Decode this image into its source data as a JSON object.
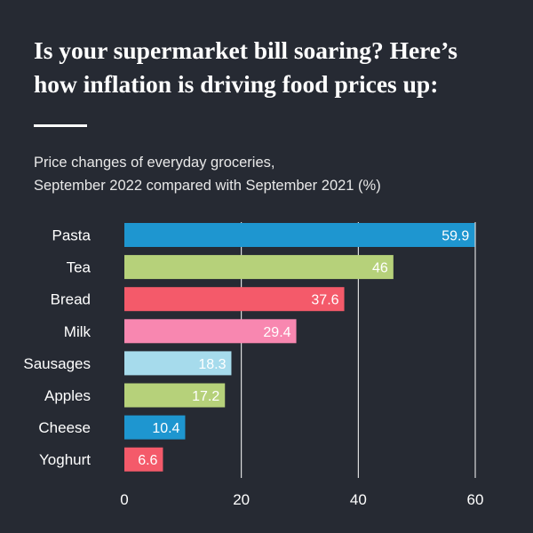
{
  "header": {
    "title_line1": "Is your supermarket bill soaring? Here’s",
    "title_line2": "how inflation is driving food prices up:",
    "subtitle_line1": "Price changes of everyday groceries,",
    "subtitle_line2": "September 2022 compared with September 2021 (%)"
  },
  "chart_data": {
    "type": "bar",
    "orientation": "horizontal",
    "title": "Is your supermarket bill soaring? Here’s how inflation is driving food prices up:",
    "subtitle": "Price changes of everyday groceries, September 2022 compared with September 2021 (%)",
    "categories": [
      "Pasta",
      "Tea",
      "Bread",
      "Milk",
      "Sausages",
      "Apples",
      "Cheese",
      "Yoghurt"
    ],
    "values": [
      59.9,
      46,
      37.6,
      29.4,
      18.3,
      17.2,
      10.4,
      6.6
    ],
    "value_labels": [
      "59.9",
      "46",
      "37.6",
      "29.4",
      "18.3",
      "17.2",
      "10.4",
      "6.6"
    ],
    "colors": [
      "#1e96d0",
      "#b6d17a",
      "#f45a6a",
      "#f887b0",
      "#a6dbec",
      "#b6d17a",
      "#1e96d0",
      "#f45a6a"
    ],
    "xlim": [
      0,
      60
    ],
    "xticks": [
      0,
      20,
      40,
      60
    ],
    "xtick_labels": [
      "0",
      "20",
      "40",
      "60"
    ],
    "xlabel": "",
    "ylabel": "",
    "grid": "vertical"
  }
}
